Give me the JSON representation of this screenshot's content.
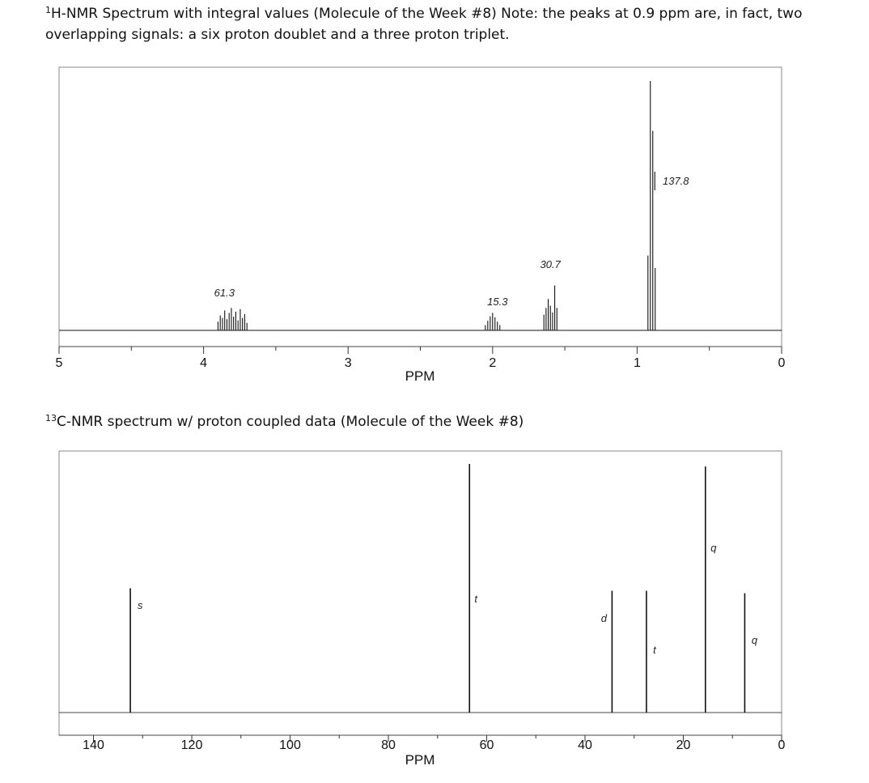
{
  "captions": {
    "h_prefix": "1",
    "h_text": "H-NMR Spectrum with integral values (Molecule of the Week #8)  Note:  the peaks at 0.9 ppm are, in fact, two overlapping signals:  a six proton doublet and a three proton triplet.",
    "c_prefix": "13",
    "c_text": "C-NMR spectrum w/ proton coupled data (Molecule of the Week #8)"
  },
  "chart_data": [
    {
      "type": "line",
      "nucleus": "1H",
      "xlabel": "PPM",
      "xlim": [
        5,
        0
      ],
      "x_tick_labels": [
        "5",
        "4",
        "3",
        "2",
        "1",
        "0"
      ],
      "x_tick_values": [
        5,
        4,
        3,
        2,
        1,
        0
      ],
      "signals": [
        {
          "center_ppm": 3.8,
          "integral": "61.3",
          "relative_height": 0.1
        },
        {
          "center_ppm": 2.0,
          "integral": "15.3",
          "relative_height": 0.07
        },
        {
          "center_ppm": 1.6,
          "integral": "30.7",
          "relative_height": 0.18
        },
        {
          "center_ppm": 0.9,
          "integral": "137.8",
          "relative_height": 1.0
        }
      ]
    },
    {
      "type": "bar",
      "nucleus": "13C",
      "xlabel": "PPM",
      "xlim": [
        147,
        0
      ],
      "x_tick_labels": [
        "140",
        "120",
        "100",
        "80",
        "60",
        "40",
        "20",
        "0"
      ],
      "x_tick_values": [
        140,
        120,
        100,
        80,
        60,
        40,
        20,
        0
      ],
      "peaks": [
        {
          "ppm": 132.5,
          "relative_height": 0.5,
          "multiplicity": "s"
        },
        {
          "ppm": 63.5,
          "relative_height": 1.0,
          "multiplicity": "t"
        },
        {
          "ppm": 34.5,
          "relative_height": 0.49,
          "multiplicity": "d"
        },
        {
          "ppm": 27.5,
          "relative_height": 0.49,
          "multiplicity": "t"
        },
        {
          "ppm": 15.5,
          "relative_height": 0.99,
          "multiplicity": "q"
        },
        {
          "ppm": 7.5,
          "relative_height": 0.48,
          "multiplicity": "q"
        }
      ]
    }
  ]
}
